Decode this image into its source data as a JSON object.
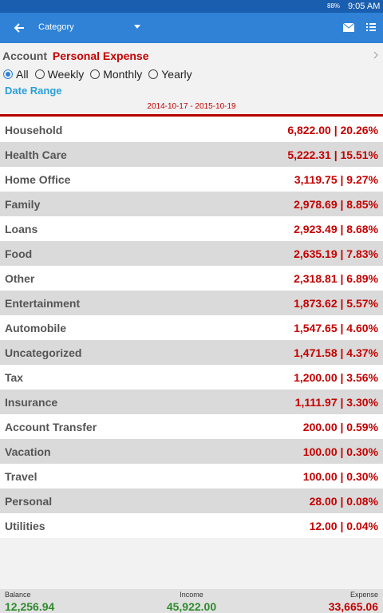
{
  "status_bar": {
    "battery": "88%",
    "time": "9:05 AM"
  },
  "app_bar": {
    "title": "Category"
  },
  "account": {
    "label": "Account",
    "name": "Personal Expense"
  },
  "period_options": [
    {
      "label": "All",
      "selected": true
    },
    {
      "label": "Weekly",
      "selected": false
    },
    {
      "label": "Monthly",
      "selected": false
    },
    {
      "label": "Yearly",
      "selected": false
    }
  ],
  "date_range": {
    "label": "Date Range",
    "text": "2014-10-17 - 2015-10-19"
  },
  "rows": [
    {
      "name": "Household",
      "value": "6,822.00 | 20.26%"
    },
    {
      "name": "Health Care",
      "value": "5,222.31 | 15.51%"
    },
    {
      "name": "Home Office",
      "value": "3,119.75 | 9.27%"
    },
    {
      "name": "Family",
      "value": "2,978.69 | 8.85%"
    },
    {
      "name": "Loans",
      "value": "2,923.49 | 8.68%"
    },
    {
      "name": "Food",
      "value": "2,635.19 | 7.83%"
    },
    {
      "name": "Other",
      "value": "2,318.81 | 6.89%"
    },
    {
      "name": "Entertainment",
      "value": "1,873.62 | 5.57%"
    },
    {
      "name": "Automobile",
      "value": "1,547.65 | 4.60%"
    },
    {
      "name": "Uncategorized",
      "value": "1,471.58 | 4.37%"
    },
    {
      "name": "Tax",
      "value": "1,200.00 | 3.56%"
    },
    {
      "name": "Insurance",
      "value": "1,111.97 | 3.30%"
    },
    {
      "name": "Account Transfer",
      "value": "200.00 | 0.59%"
    },
    {
      "name": "Vacation",
      "value": "100.00 | 0.30%"
    },
    {
      "name": "Travel",
      "value": "100.00 | 0.30%"
    },
    {
      "name": "Personal",
      "value": "28.00 | 0.08%"
    },
    {
      "name": "Utilities",
      "value": "12.00 | 0.04%"
    }
  ],
  "footer": {
    "balance": {
      "label": "Balance",
      "value": "12,256.94"
    },
    "income": {
      "label": "Income",
      "value": "45,922.00"
    },
    "expense": {
      "label": "Expense",
      "value": "33,665.06"
    }
  }
}
